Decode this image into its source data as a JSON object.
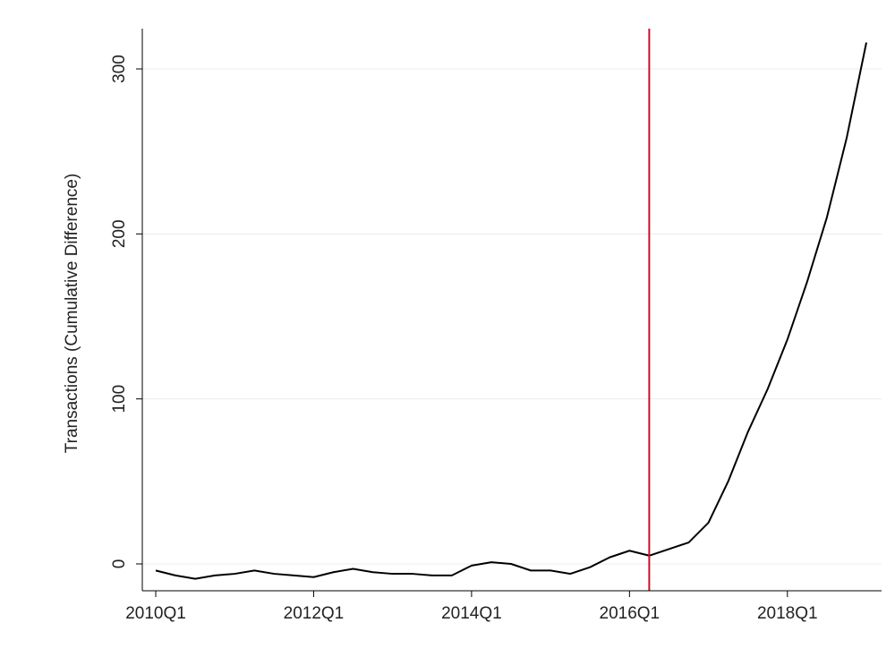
{
  "chart_data": {
    "type": "line",
    "title": "",
    "xlabel": "",
    "ylabel": "Transactions (Cumulative Difference)",
    "xlim": [
      "2010Q1",
      "2019Q1"
    ],
    "ylim": [
      -15,
      325
    ],
    "x_ticks": [
      "2010Q1",
      "2012Q1",
      "2014Q1",
      "2016Q1",
      "2018Q1"
    ],
    "y_ticks": [
      0,
      100,
      200,
      300
    ],
    "grid": "horizontal",
    "legend": "none",
    "vertical_line": {
      "x": "2016Q2",
      "color": "#c8102e"
    },
    "line_color": "#000000",
    "x": [
      "2010Q1",
      "2010Q2",
      "2010Q3",
      "2010Q4",
      "2011Q1",
      "2011Q2",
      "2011Q3",
      "2011Q4",
      "2012Q1",
      "2012Q2",
      "2012Q3",
      "2012Q4",
      "2013Q1",
      "2013Q2",
      "2013Q3",
      "2013Q4",
      "2014Q1",
      "2014Q2",
      "2014Q3",
      "2014Q4",
      "2015Q1",
      "2015Q2",
      "2015Q3",
      "2015Q4",
      "2016Q1",
      "2016Q2",
      "2016Q3",
      "2016Q4",
      "2017Q1",
      "2017Q2",
      "2017Q3",
      "2017Q4",
      "2018Q1",
      "2018Q2",
      "2018Q3",
      "2018Q4",
      "2019Q1"
    ],
    "values": [
      -4,
      -7,
      -9,
      -7,
      -6,
      -4,
      -6,
      -7,
      -8,
      -5,
      -3,
      -5,
      -6,
      -6,
      -7,
      -7,
      -1,
      1,
      0,
      -4,
      -4,
      -6,
      -2,
      4,
      8,
      5,
      9,
      13,
      25,
      50,
      80,
      106,
      136,
      171,
      210,
      258,
      316
    ]
  }
}
